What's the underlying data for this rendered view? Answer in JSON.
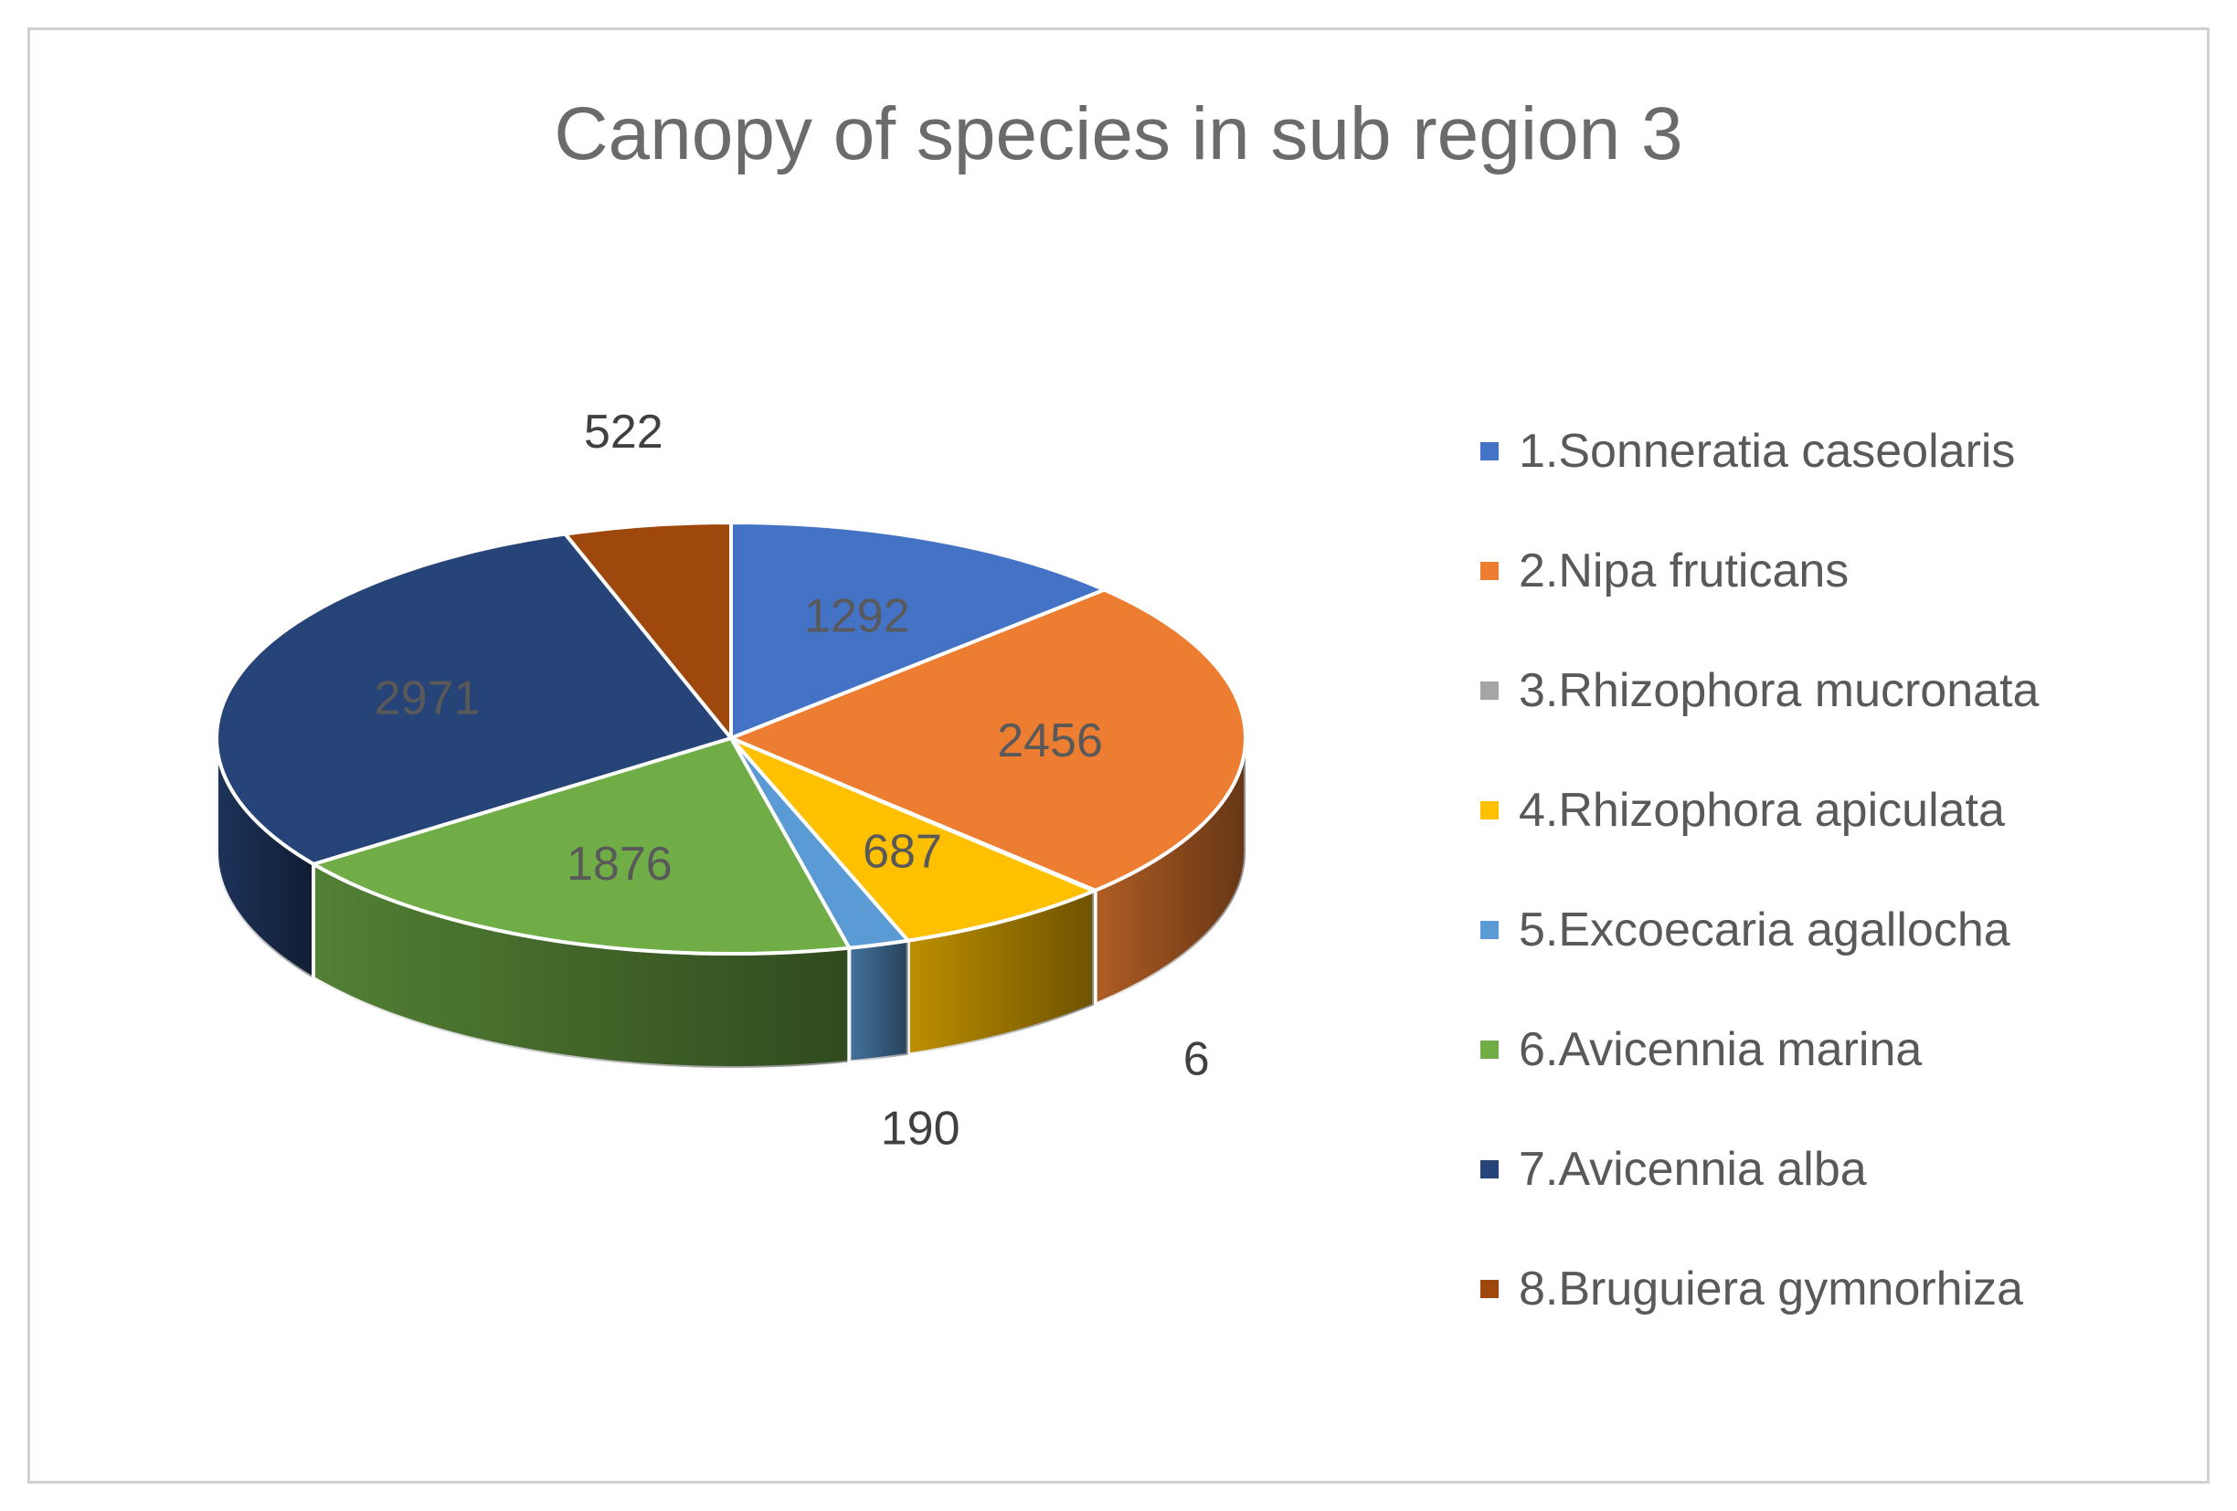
{
  "chart_data": {
    "type": "pie",
    "title": "Canopy of species in sub region 3",
    "legend_position": "right",
    "three_d": true,
    "categories": [
      "1.Sonneratia caseolaris",
      "2.Nipa fruticans",
      "3.Rhizophora mucronata",
      "4.Rhizophora apiculata",
      "5.Excoecaria agallocha",
      "6.Avicennia marina",
      "7.Avicennia alba",
      "8.Bruguiera gymnorhiza"
    ],
    "values": [
      1292,
      2456,
      6,
      687,
      190,
      1876,
      2971,
      522
    ],
    "data_labels": [
      "1292",
      "2456",
      "6",
      "687",
      "190",
      "1876",
      "2971",
      "522"
    ],
    "colors": [
      "#4472C4",
      "#ED7D31",
      "#A5A5A5",
      "#FFC000",
      "#5B9BD5",
      "#70AD47",
      "#264478",
      "#9E480E"
    ]
  }
}
